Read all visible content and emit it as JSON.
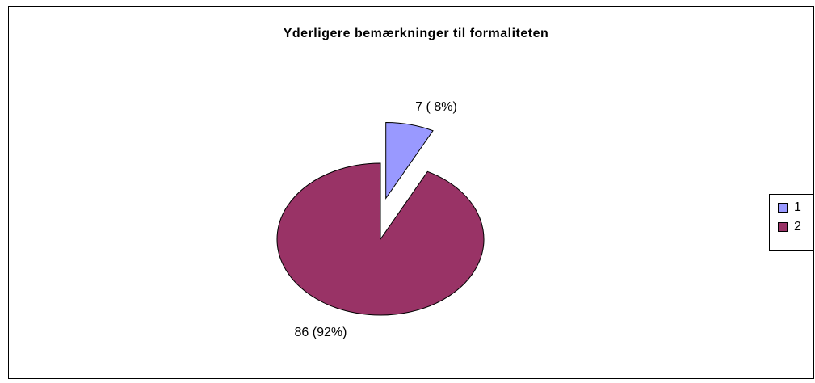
{
  "chart_data": {
    "type": "pie",
    "title": "Yderligere bemærkninger til formaliteten",
    "categories": [
      "1",
      "2"
    ],
    "values": [
      7,
      86
    ],
    "value_labels": [
      "7 ( 8%)",
      "86 (92%)"
    ],
    "colors": [
      "#9999ff",
      "#993366"
    ],
    "legend": "right"
  }
}
